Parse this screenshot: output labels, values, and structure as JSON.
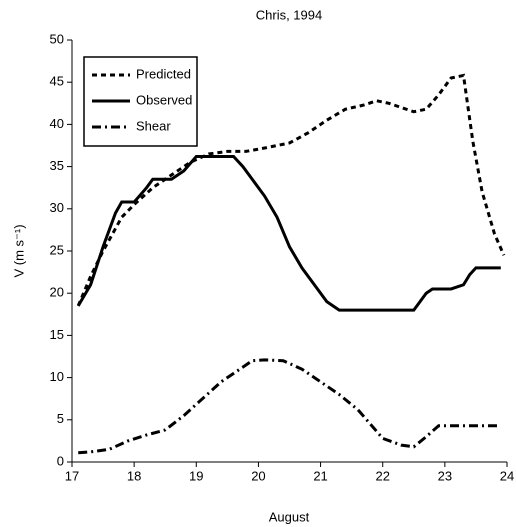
{
  "chart_data": {
    "type": "line",
    "title": "Chris, 1994",
    "x_label": "August",
    "y_label": "V (m s⁻¹)",
    "xlim": [
      17,
      24
    ],
    "xticks": [
      17,
      18,
      19,
      20,
      21,
      22,
      23,
      24
    ],
    "ylim": [
      0,
      50
    ],
    "yticks": [
      0,
      5,
      10,
      15,
      20,
      25,
      30,
      35,
      40,
      45,
      50
    ],
    "legend": "upper left",
    "series": [
      {
        "name": "Predicted",
        "color": "#000000",
        "style": "dashed",
        "x": [
          17.1,
          17.3,
          17.5,
          17.8,
          18.0,
          18.3,
          18.6,
          18.9,
          19.2,
          19.5,
          19.8,
          20.1,
          20.5,
          20.8,
          21.1,
          21.4,
          21.7,
          21.9,
          22.1,
          22.3,
          22.5,
          22.7,
          22.9,
          23.1,
          23.3,
          23.45,
          23.6,
          23.8,
          23.95
        ],
        "values": [
          18.5,
          22,
          25,
          29,
          30.5,
          32.5,
          34,
          35.5,
          36.5,
          36.8,
          36.8,
          37.2,
          37.8,
          39,
          40.5,
          41.8,
          42.3,
          42.8,
          42.5,
          42,
          41.5,
          41.8,
          43.5,
          45.5,
          45.8,
          38,
          32,
          27,
          24.5
        ]
      },
      {
        "name": "Observed",
        "color": "#000000",
        "style": "solid",
        "x": [
          17.1,
          17.3,
          17.5,
          17.7,
          17.8,
          18.0,
          18.2,
          18.3,
          18.6,
          18.8,
          19.0,
          19.3,
          19.6,
          19.75,
          19.9,
          20.1,
          20.3,
          20.5,
          20.7,
          20.9,
          21.1,
          21.3,
          21.6,
          22.0,
          22.3,
          22.5,
          22.7,
          22.8,
          23.1,
          23.3,
          23.4,
          23.5,
          23.9
        ],
        "values": [
          18.5,
          21,
          25.5,
          29.5,
          30.8,
          30.8,
          32.5,
          33.5,
          33.5,
          34.5,
          36.2,
          36.2,
          36.2,
          35,
          33.5,
          31.5,
          29,
          25.5,
          23,
          21,
          19,
          18,
          18,
          18,
          18,
          18,
          20,
          20.5,
          20.5,
          21,
          22.2,
          23,
          23
        ]
      },
      {
        "name": "Shear",
        "color": "#000000",
        "style": "dashdot",
        "x": [
          17.1,
          17.3,
          17.6,
          17.9,
          18.2,
          18.5,
          18.8,
          19.1,
          19.4,
          19.7,
          19.9,
          20.1,
          20.4,
          20.7,
          21.0,
          21.3,
          21.6,
          21.8,
          22.0,
          22.3,
          22.5,
          22.7,
          22.9,
          23.2,
          23.9
        ],
        "values": [
          1.1,
          1.2,
          1.5,
          2.5,
          3.2,
          3.8,
          5.5,
          7.5,
          9.5,
          11,
          12,
          12.1,
          12,
          11,
          9.5,
          8,
          6.2,
          4.5,
          2.8,
          2,
          1.8,
          3,
          4.3,
          4.3,
          4.3
        ]
      }
    ]
  }
}
